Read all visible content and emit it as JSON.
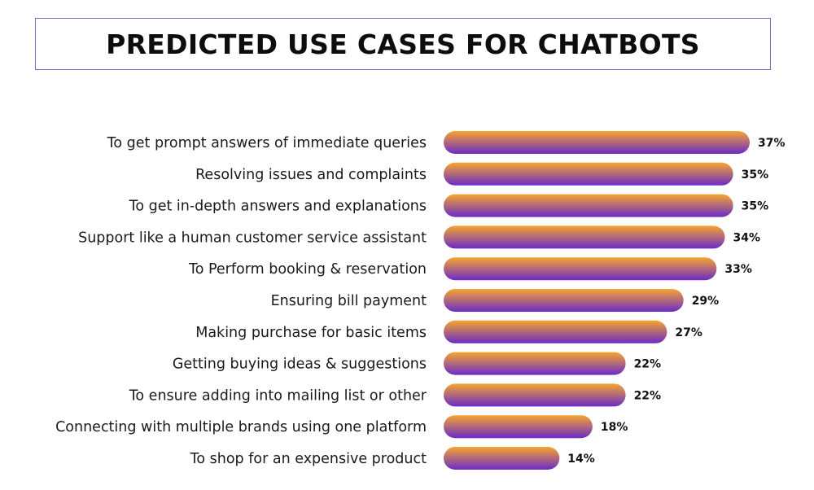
{
  "chart_data": {
    "type": "bar",
    "orientation": "horizontal",
    "title": "PREDICTED USE CASES FOR CHATBOTS",
    "categories": [
      "To get prompt answers of immediate queries",
      "Resolving issues and complaints",
      "To get in-depth answers and explanations",
      "Support like a human customer service assistant",
      "To Perform booking & reservation",
      "Ensuring bill payment",
      "Making purchase for basic items",
      "Getting buying ideas & suggestions",
      "To ensure adding into mailing list or other",
      "Connecting with multiple brands using one platform",
      "To shop for an expensive product"
    ],
    "values": [
      37,
      35,
      35,
      34,
      33,
      29,
      27,
      22,
      22,
      18,
      14
    ],
    "value_labels": [
      "37%",
      "35%",
      "35%",
      "34%",
      "33%",
      "29%",
      "27%",
      "22%",
      "22%",
      "18%",
      "14%"
    ],
    "unit": "%",
    "xlim": [
      0,
      37
    ],
    "grid": false,
    "legend": "none",
    "colors": {
      "bar_gradient_top": "#f7a52e",
      "bar_gradient_bottom": "#6a2bc8",
      "title_border": "#7b6cc0"
    }
  }
}
